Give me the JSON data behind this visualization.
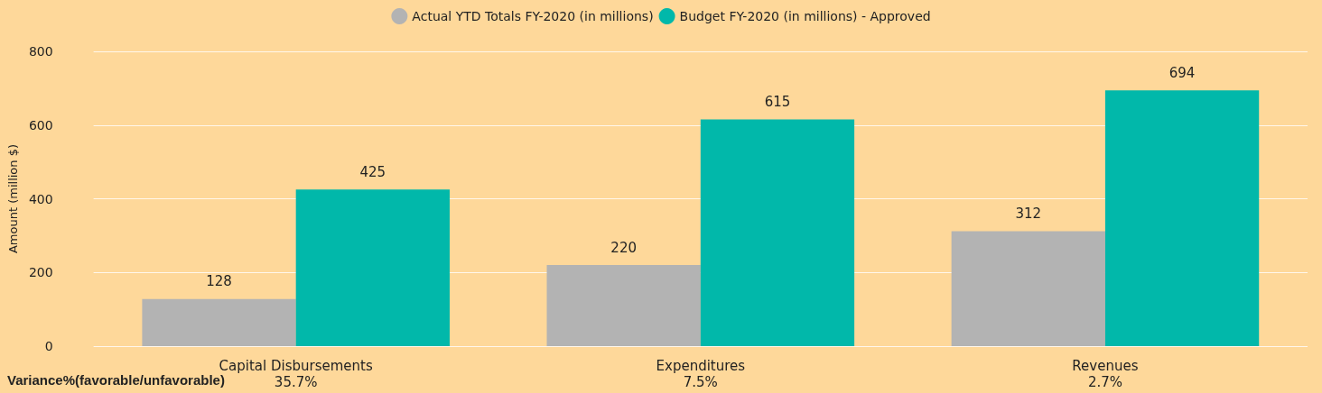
{
  "chart_data": {
    "type": "bar",
    "ylabel": "Amount (million $)",
    "categories": [
      "Capital Disbursements",
      "Expenditures",
      "Revenues"
    ],
    "series": [
      {
        "name": "Actual YTD Totals FY-2020 (in millions)",
        "color": "#b3b3b3",
        "values": [
          128,
          220,
          312
        ]
      },
      {
        "name": "Budget FY-2020 (in millions) - Approved",
        "color": "#01b8aa",
        "values": [
          425,
          615,
          694
        ]
      }
    ],
    "ylim": [
      0,
      800
    ],
    "yticks": [
      0,
      200,
      400,
      600,
      800
    ],
    "grid": "y",
    "legend": "top",
    "data_labels": true,
    "annotations": [
      "Variance%(favorable/unfavorable)",
      "35.7%",
      "7.5%",
      "2.7%"
    ]
  }
}
